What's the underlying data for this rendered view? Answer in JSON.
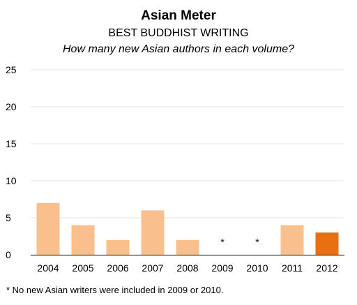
{
  "header": {
    "title": "Asian Meter",
    "subtitle": "BEST BUDDHIST WRITING",
    "question": "How many new Asian authors in each volume?"
  },
  "footnote": "* No new Asian writers were included in 2009 or 2010.",
  "colors": {
    "bar": "#f9c08e",
    "highlight_bar": "#e86f12",
    "grid": "#e6e6e6",
    "axis": "#000000"
  },
  "chart_data": {
    "type": "bar",
    "categories": [
      "2004",
      "2005",
      "2006",
      "2007",
      "2008",
      "2009",
      "2010",
      "2011",
      "2012"
    ],
    "values": [
      7,
      4,
      2,
      6,
      2,
      0,
      0,
      4,
      3
    ],
    "markers": [
      "",
      "",
      "",
      "",
      "",
      "*",
      "*",
      "",
      ""
    ],
    "highlight_index": 8,
    "ylim": [
      0,
      25
    ],
    "yticks": [
      "0",
      "5",
      "10",
      "15",
      "20",
      "25"
    ],
    "grid": true,
    "title": "Asian Meter",
    "xlabel": "",
    "ylabel": ""
  }
}
